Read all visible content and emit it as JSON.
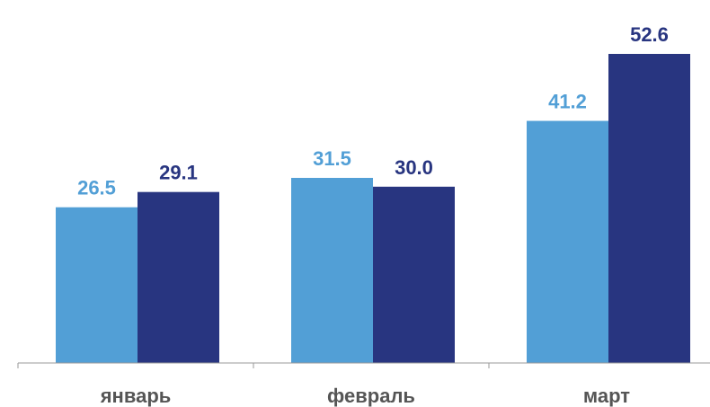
{
  "chart_data": {
    "type": "bar",
    "title": "",
    "xlabel": "",
    "ylabel": "",
    "categories": [
      "январь",
      "февраль",
      "март"
    ],
    "series": [
      {
        "color": "#529fd6",
        "values": [
          26.5,
          31.5,
          41.2
        ]
      },
      {
        "color": "#283580",
        "values": [
          29.1,
          30.0,
          52.6
        ]
      }
    ],
    "value_labels": [
      [
        "26.5",
        "31.5",
        "41.2"
      ],
      [
        "29.1",
        "30.0",
        "52.6"
      ]
    ],
    "ylim": [
      0,
      56
    ],
    "grid": false,
    "legend": "none",
    "axis_color": "#9a9a9a"
  }
}
